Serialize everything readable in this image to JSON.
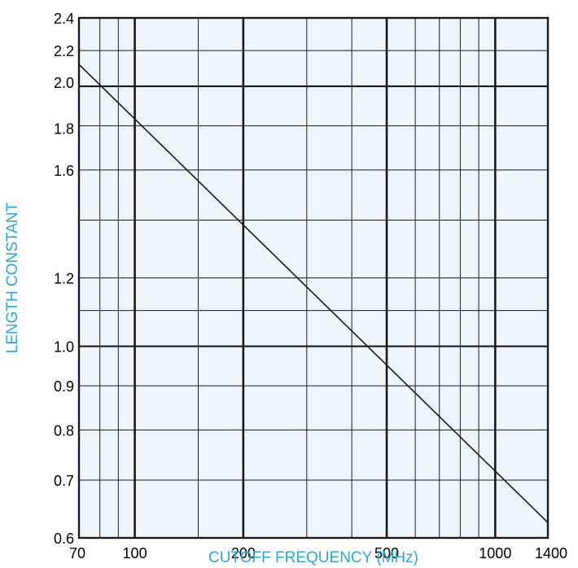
{
  "chart_data": {
    "type": "line",
    "x_scale": "log",
    "y_scale": "log",
    "xlim": [
      70,
      1400
    ],
    "ylim": [
      0.6,
      2.4
    ],
    "xlabel": "CUTOFF FREQUENCY (MHz)",
    "ylabel": "LENGTH CONSTANT",
    "x_tick_labels": [
      "70",
      "100",
      "200",
      "500",
      "1000",
      "1400"
    ],
    "x_tick_values": [
      70,
      100,
      200,
      500,
      1000,
      1400
    ],
    "y_tick_labels": [
      "0.6",
      "0.7",
      "0.8",
      "0.9",
      "1.0",
      "1.2",
      "1.6",
      "1.8",
      "2.0",
      "2.2",
      "2.4"
    ],
    "y_tick_values": [
      0.6,
      0.7,
      0.8,
      0.9,
      1.0,
      1.2,
      1.6,
      1.8,
      2.0,
      2.2,
      2.4
    ],
    "x_minor_grid": [
      80,
      90,
      150,
      300,
      400,
      600,
      700,
      800,
      900
    ],
    "x_major_grid": [
      100,
      200,
      500,
      1000
    ],
    "y_minor_grid": [
      0.7,
      0.8,
      0.9,
      1.1,
      1.2,
      1.4,
      1.6,
      1.8,
      2.2
    ],
    "y_major_grid": [
      1.0,
      2.0
    ],
    "grid": true,
    "series": [
      {
        "x": [
          70,
          1400
        ],
        "y": [
          2.12,
          0.625
        ]
      }
    ],
    "colors": {
      "plot_background": "#eef6fb",
      "grid": "#1a1a1a",
      "line": "#1a1a1a",
      "axis_title": "#2aa8dc"
    }
  }
}
